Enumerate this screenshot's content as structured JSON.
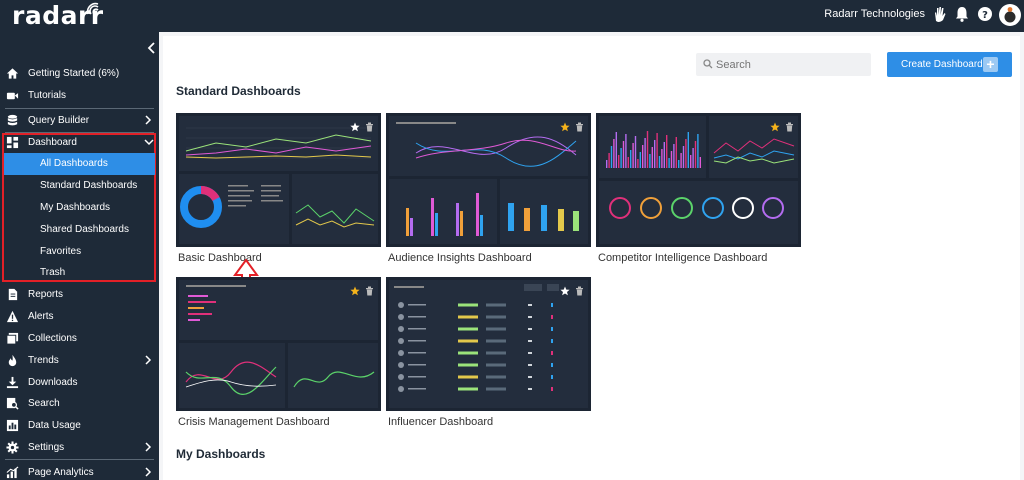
{
  "brand": {
    "logo_text": "radarr"
  },
  "header": {
    "org_name": "Radarr Technologies",
    "icons": [
      "waving-hand-icon",
      "bell-icon",
      "help-icon",
      "avatar"
    ]
  },
  "sidebar": {
    "items": [
      {
        "label": "Getting Started (6%)",
        "icon": "home-icon"
      },
      {
        "label": "Tutorials",
        "icon": "video-icon"
      },
      {
        "label": "Query Builder",
        "icon": "database-icon"
      },
      {
        "label": "Dashboard",
        "icon": "dashboard-icon"
      },
      {
        "label": "Reports",
        "icon": "report-icon"
      },
      {
        "label": "Alerts",
        "icon": "alert-icon"
      },
      {
        "label": "Collections",
        "icon": "collections-icon"
      },
      {
        "label": "Trends",
        "icon": "flame-icon"
      },
      {
        "label": "Downloads",
        "icon": "download-icon"
      },
      {
        "label": "Search",
        "icon": "search-doc-icon"
      },
      {
        "label": "Data Usage",
        "icon": "data-usage-icon"
      },
      {
        "label": "Settings",
        "icon": "gear-icon"
      },
      {
        "label": "Page Analytics",
        "icon": "analytics-icon"
      }
    ],
    "dashboard_subitems": [
      {
        "label": "All Dashboards",
        "active": true
      },
      {
        "label": "Standard Dashboards",
        "active": false
      },
      {
        "label": "My Dashboards",
        "active": false
      },
      {
        "label": "Shared Dashboards",
        "active": false
      },
      {
        "label": "Favorites",
        "active": false
      },
      {
        "label": "Trash",
        "active": false
      }
    ]
  },
  "toolbar": {
    "search_placeholder": "Search",
    "create_label": "Create Dashboard"
  },
  "sections": {
    "standard_title": "Standard Dashboards",
    "my_title": "My Dashboards"
  },
  "dashboards": [
    {
      "name": "Basic Dashboard",
      "favorite": false
    },
    {
      "name": "Audience Insights Dashboard",
      "favorite": true
    },
    {
      "name": "Competitor Intelligence Dashboard",
      "favorite": true
    },
    {
      "name": "Crisis Management Dashboard",
      "favorite": true
    },
    {
      "name": "Influencer Dashboard",
      "favorite": false
    }
  ],
  "colors": {
    "sidebar_bg": "#1e2a38",
    "accent": "#2e8ee6",
    "highlight_border": "#e32027",
    "card_bg": "#1c2533",
    "star": "#f5b31b"
  }
}
